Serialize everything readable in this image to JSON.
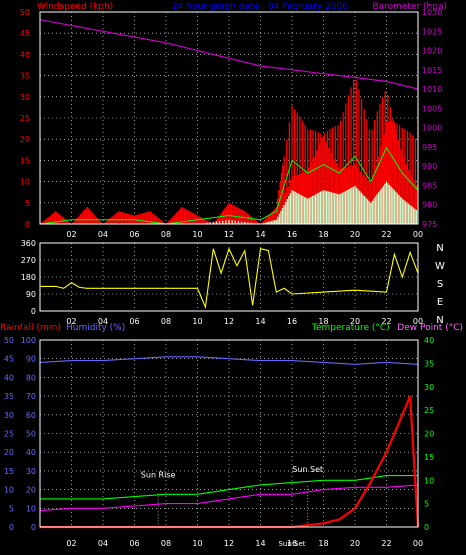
{
  "top": {
    "title": "24 hour graph date : 04 February 2006",
    "left_label": "Windspeed (kph)",
    "right_label": "Barometer (hpa)",
    "left_ticks": [
      "0",
      "5",
      "10",
      "15",
      "20",
      "25",
      "30",
      "35",
      "40",
      "45",
      "50"
    ],
    "right_ticks": [
      "975",
      "980",
      "985",
      "990",
      "995",
      "1000",
      "1005",
      "1010",
      "1015",
      "1020",
      "1025",
      "1030"
    ],
    "x_ticks": [
      "02",
      "04",
      "06",
      "08",
      "10",
      "12",
      "14",
      "16",
      "18",
      "20",
      "22",
      "00"
    ]
  },
  "mid": {
    "left_ticks": [
      "0",
      "90",
      "180",
      "270",
      "360"
    ],
    "right_labels": [
      "N",
      "W",
      "S",
      "E",
      "N"
    ],
    "x_ticks": [
      "02",
      "04",
      "06",
      "08",
      "10",
      "12",
      "14",
      "16",
      "18",
      "20",
      "22",
      "00"
    ]
  },
  "bottom": {
    "rain_label": "Rainfall (mm)",
    "humidity_label": "Humidity (%)",
    "temp_label": "Temperature (°C)",
    "dew_label": "Dew Point (°C)",
    "rain_ticks": [
      "0",
      "5",
      "10",
      "15",
      "20",
      "25",
      "30",
      "35",
      "40",
      "45",
      "50"
    ],
    "hum_ticks": [
      "0",
      "10",
      "20",
      "30",
      "40",
      "50",
      "60",
      "70",
      "80",
      "90",
      "100"
    ],
    "temp_ticks": [
      "0",
      "5",
      "10",
      "15",
      "20",
      "25",
      "30",
      "35",
      "40"
    ],
    "x_ticks": [
      "02",
      "04",
      "06",
      "08",
      "10",
      "12",
      "14",
      "16",
      "18",
      "20",
      "22",
      "00"
    ],
    "sunrise_label": "Sun Rise",
    "sunset_label": "Sun Set",
    "sunset_label2": "Sun Set"
  },
  "colors": {
    "wind": "#ff0000",
    "gust": "#ff0000",
    "avg": "#00ff00",
    "low": "#ccffcc",
    "baro": "#cc00cc",
    "dir": "#ffff00",
    "rain": "#ff0000",
    "humidity": "#6666ff",
    "temp": "#00ff00",
    "dew": "#ff00ff",
    "axis_left": "#ff0000",
    "axis_right": "#cc00cc",
    "title": "#0000ff",
    "grid": "#ffffff"
  },
  "chart_data": [
    {
      "type": "line",
      "name": "wind and barometer",
      "x_range": [
        0,
        24
      ],
      "wind_ylim": [
        0,
        50
      ],
      "baro_ylim": [
        975,
        1030
      ],
      "barometer": {
        "x": [
          0,
          4,
          8,
          12,
          14,
          16,
          18,
          20,
          22,
          24
        ],
        "y": [
          1028,
          1025,
          1022,
          1018,
          1016,
          1015,
          1014,
          1013,
          1012,
          1010
        ]
      },
      "wind_high": {
        "x": [
          0,
          1,
          2,
          3,
          4,
          5,
          6,
          7,
          8,
          9,
          10,
          11,
          12,
          13,
          14,
          15,
          16,
          17,
          18,
          19,
          20,
          21,
          22,
          23,
          24
        ],
        "y": [
          0,
          3,
          0,
          4,
          0,
          3,
          2,
          3,
          0,
          4,
          2,
          0,
          5,
          3,
          0,
          4,
          28,
          25,
          30,
          26,
          35,
          22,
          40,
          28,
          20
        ]
      },
      "wind_avg": {
        "x": [
          0,
          2,
          4,
          6,
          8,
          10,
          12,
          14,
          15,
          16,
          17,
          18,
          19,
          20,
          21,
          22,
          23,
          24
        ],
        "y": [
          0,
          1,
          1,
          1,
          0,
          1,
          2,
          1,
          3,
          15,
          12,
          14,
          12,
          16,
          10,
          18,
          12,
          8
        ]
      },
      "wind_low": {
        "x": [
          0,
          2,
          4,
          6,
          8,
          10,
          12,
          14,
          15,
          16,
          17,
          18,
          19,
          20,
          21,
          22,
          23,
          24
        ],
        "y": [
          0,
          0,
          0,
          0,
          0,
          0,
          1,
          0,
          1,
          8,
          6,
          8,
          7,
          9,
          5,
          10,
          6,
          3
        ]
      }
    },
    {
      "type": "line",
      "name": "wind direction",
      "x_range": [
        0,
        24
      ],
      "ylim": [
        0,
        360
      ],
      "direction": {
        "x": [
          0,
          1,
          1.5,
          2,
          2.5,
          3,
          4,
          6,
          8,
          10,
          10.5,
          11,
          11.5,
          12,
          12.5,
          13,
          13.5,
          14,
          14.5,
          15,
          15.5,
          16,
          18,
          20,
          22,
          22.5,
          23,
          23.5,
          24
        ],
        "y": [
          130,
          130,
          120,
          150,
          125,
          120,
          120,
          120,
          120,
          120,
          20,
          330,
          200,
          330,
          240,
          320,
          30,
          330,
          320,
          100,
          120,
          90,
          100,
          110,
          100,
          300,
          180,
          310,
          200
        ]
      }
    },
    {
      "type": "line",
      "name": "temperature humidity rain",
      "x_range": [
        0,
        24
      ],
      "rain_ylim": [
        0,
        50
      ],
      "humidity_ylim": [
        0,
        100
      ],
      "temp_ylim": [
        0,
        40
      ],
      "humidity": {
        "x": [
          0,
          2,
          4,
          6,
          8,
          10,
          12,
          14,
          16,
          18,
          20,
          22,
          24
        ],
        "y": [
          88,
          89,
          89,
          90,
          91,
          91,
          90,
          89,
          89,
          88,
          87,
          88,
          87
        ]
      },
      "temperature": {
        "x": [
          0,
          2,
          4,
          6,
          8,
          10,
          12,
          14,
          16,
          18,
          20,
          22,
          24
        ],
        "y": [
          6,
          6,
          6,
          6.5,
          7,
          7,
          8,
          9,
          9.5,
          10,
          10,
          11,
          11
        ]
      },
      "dew_point": {
        "x": [
          0,
          2,
          4,
          6,
          8,
          10,
          12,
          14,
          16,
          18,
          20,
          22,
          24
        ],
        "y": [
          3.5,
          4,
          4,
          4.5,
          5,
          5,
          6,
          7,
          7,
          8,
          8.5,
          8.5,
          9
        ]
      },
      "rainfall": {
        "x": [
          0,
          14,
          15,
          16,
          17,
          18,
          19,
          20,
          21,
          22,
          23,
          23.5,
          24
        ],
        "y": [
          0,
          0,
          0,
          0,
          0.5,
          1,
          2,
          5,
          12,
          20,
          30,
          35,
          0
        ]
      }
    }
  ]
}
